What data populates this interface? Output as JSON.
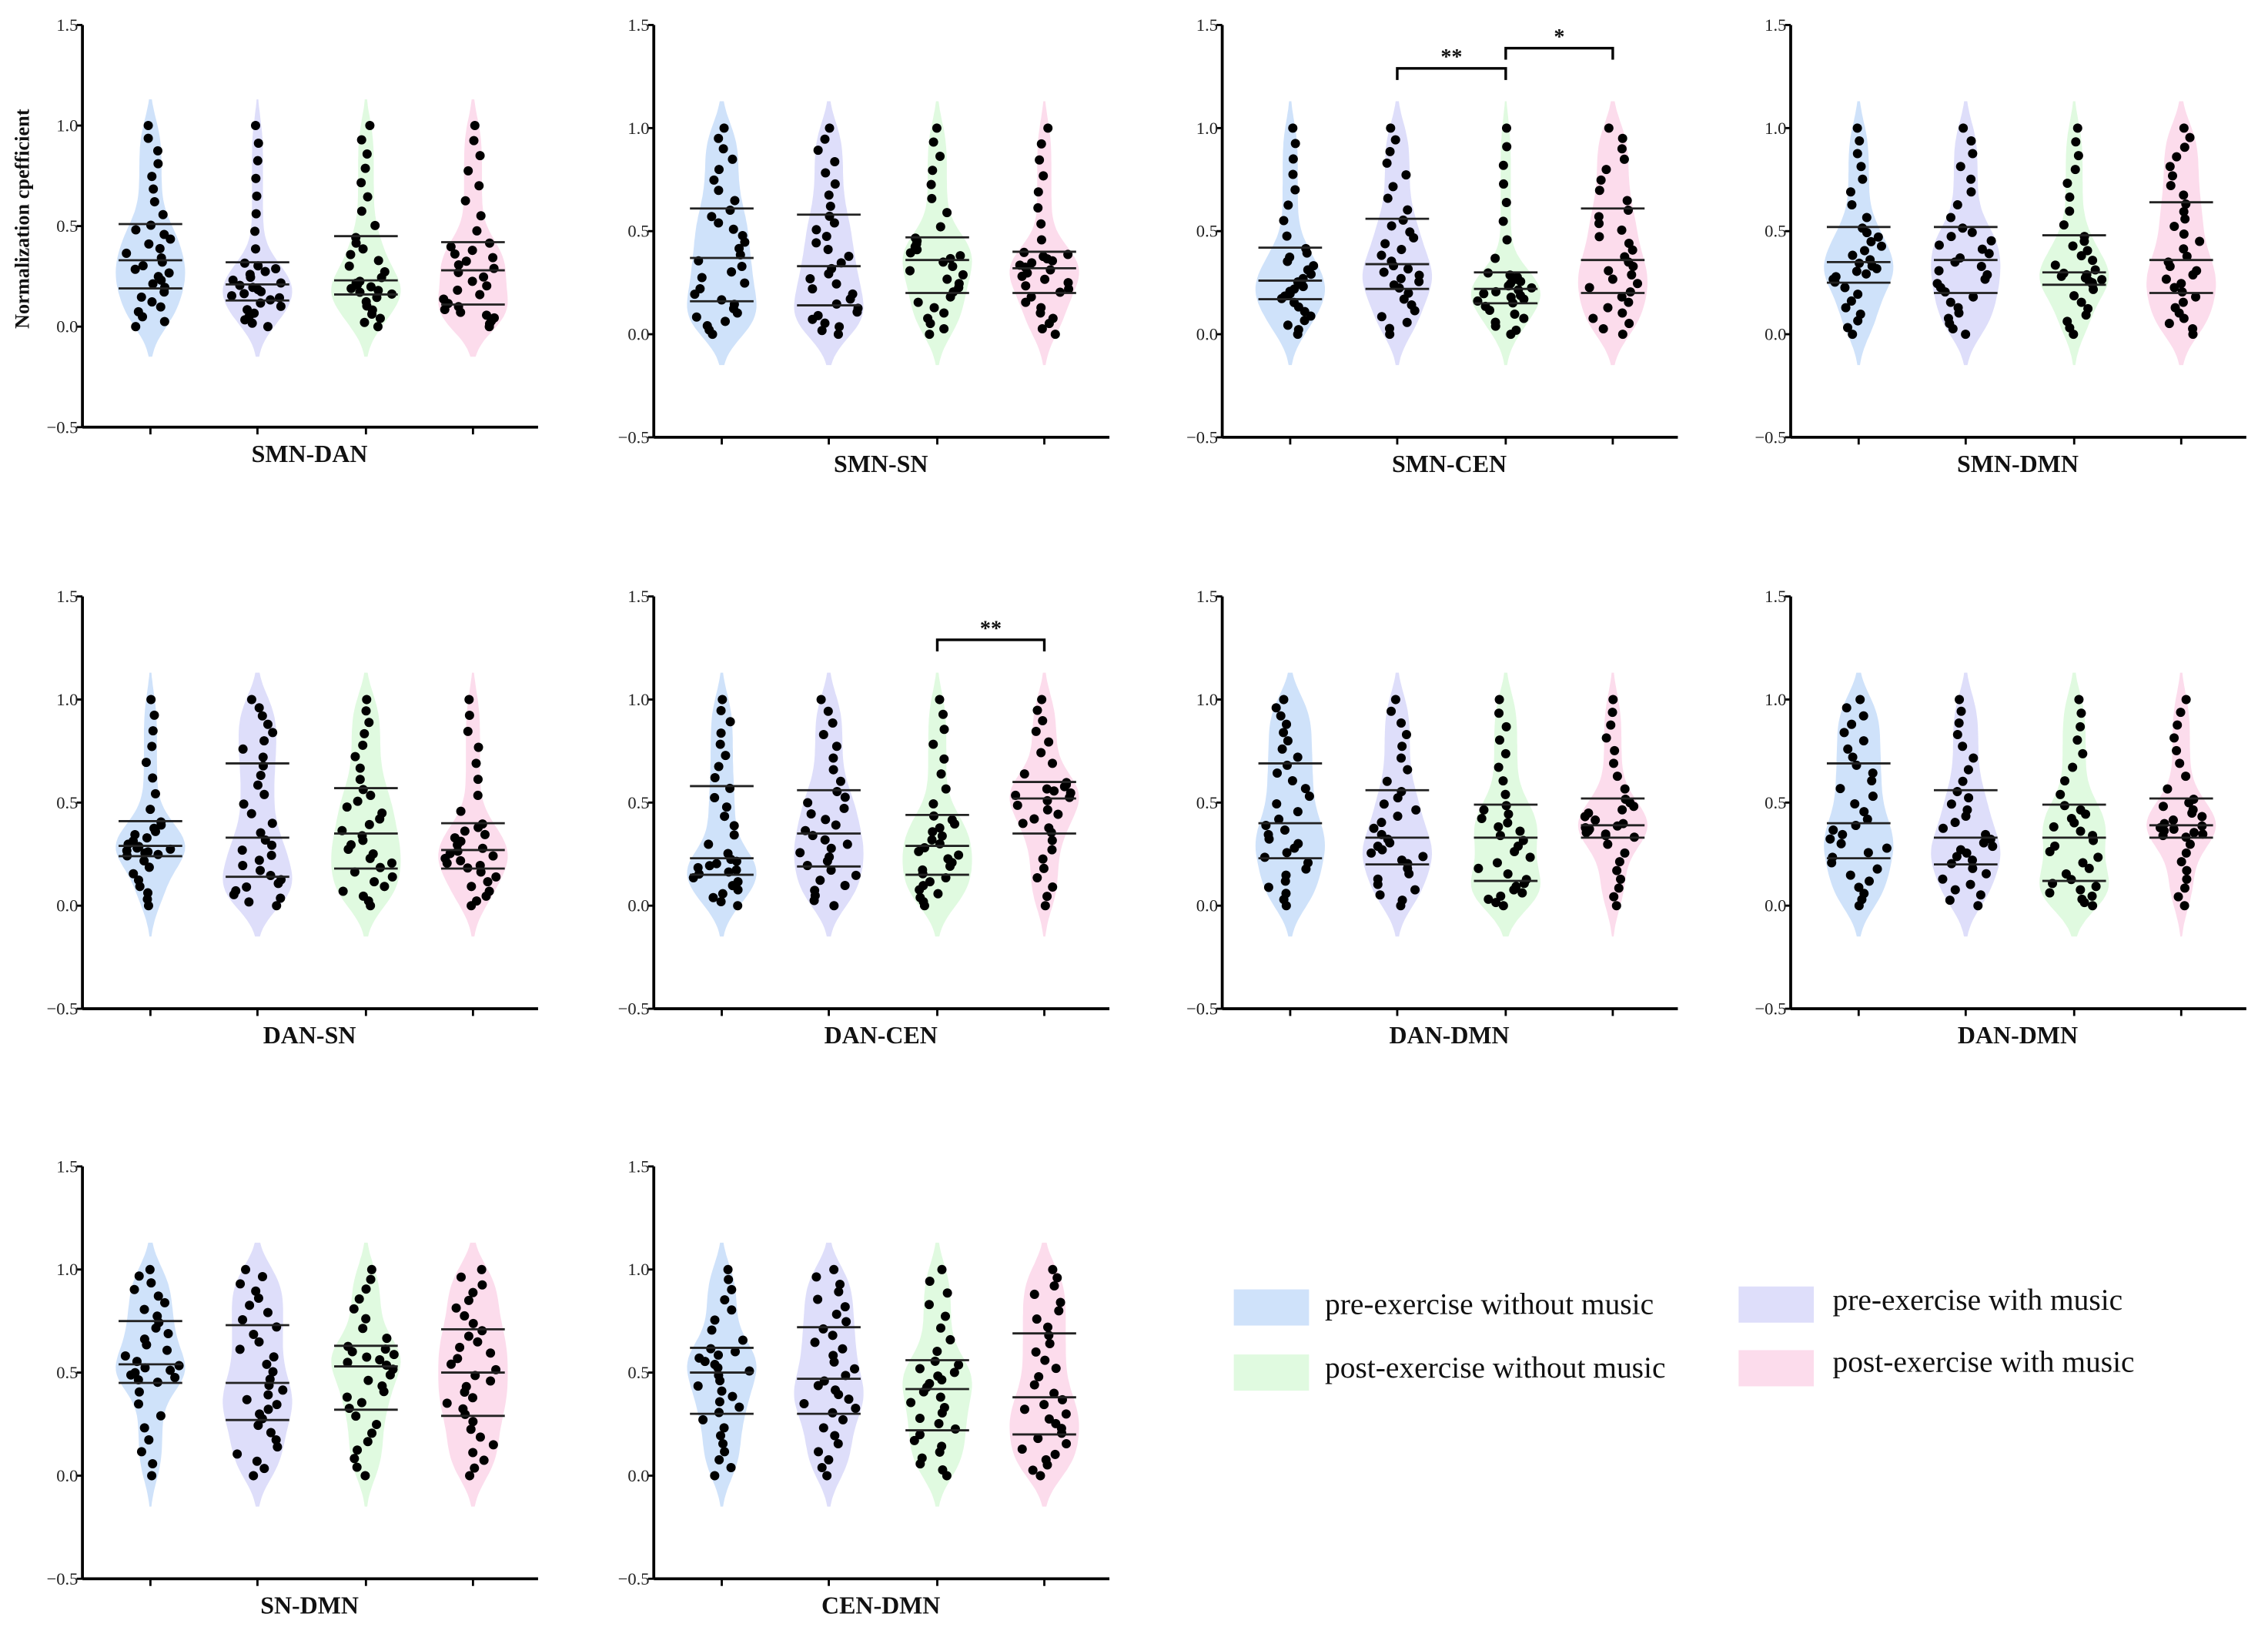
{
  "chart_data": {
    "type": "violin",
    "ylabel": "Normalization cpefficient",
    "ylim": [
      -0.5,
      1.5
    ],
    "yticks": [
      1.5,
      1.0,
      0.5,
      0.0,
      -0.5
    ],
    "ytick_labels": [
      "1.5",
      "1.0",
      "0.5",
      "0.0",
      "−0.5"
    ],
    "n_per_group": 32,
    "groups": [
      {
        "name": "pre-exercise without music",
        "color": "#cfe2fa"
      },
      {
        "name": "pre-exercise with music",
        "color": "#dedefa"
      },
      {
        "name": "post-exercise without music",
        "color": "#e0fae0"
      },
      {
        "name": "post-exercise with music",
        "color": "#fcdcec"
      }
    ],
    "legend_position": "bottom-right",
    "panels": [
      {
        "title": "SMN-DAN",
        "show_ylabel": true,
        "stats": [
          [
            0.19,
            0.33,
            0.51
          ],
          [
            0.13,
            0.21,
            0.32
          ],
          [
            0.16,
            0.23,
            0.45
          ],
          [
            0.11,
            0.28,
            0.42
          ]
        ],
        "significance": []
      },
      {
        "title": "SMN-SN",
        "stats": [
          [
            0.16,
            0.37,
            0.61
          ],
          [
            0.14,
            0.33,
            0.58
          ],
          [
            0.2,
            0.36,
            0.47
          ],
          [
            0.2,
            0.32,
            0.4
          ]
        ],
        "significance": []
      },
      {
        "title": "SMN-CEN",
        "stats": [
          [
            0.17,
            0.26,
            0.42
          ],
          [
            0.22,
            0.34,
            0.56
          ],
          [
            0.15,
            0.22,
            0.3
          ],
          [
            0.2,
            0.36,
            0.61
          ]
        ],
        "significance": [
          {
            "from": 2,
            "to": 3,
            "label": "**",
            "level": 1
          },
          {
            "from": 3,
            "to": 4,
            "label": "*",
            "level": 2
          }
        ]
      },
      {
        "title": "SMN-DMN",
        "stats": [
          [
            0.25,
            0.35,
            0.52
          ],
          [
            0.2,
            0.36,
            0.52
          ],
          [
            0.24,
            0.3,
            0.48
          ],
          [
            0.2,
            0.36,
            0.64
          ]
        ],
        "significance": []
      },
      {
        "title": "DAN-SN",
        "stats": [
          [
            0.24,
            0.29,
            0.41
          ],
          [
            0.14,
            0.33,
            0.69
          ],
          [
            0.18,
            0.35,
            0.57
          ],
          [
            0.18,
            0.27,
            0.4
          ]
        ],
        "significance": []
      },
      {
        "title": "DAN-CEN",
        "stats": [
          [
            0.15,
            0.23,
            0.58
          ],
          [
            0.19,
            0.35,
            0.56
          ],
          [
            0.15,
            0.29,
            0.44
          ],
          [
            0.35,
            0.52,
            0.6
          ]
        ],
        "significance": [
          {
            "from": 3,
            "to": 4,
            "label": "**",
            "level": 1
          }
        ]
      },
      {
        "title": "DAN-DMN",
        "stats": [
          [
            0.23,
            0.4,
            0.69
          ],
          [
            0.2,
            0.33,
            0.56
          ],
          [
            0.12,
            0.33,
            0.49
          ],
          [
            0.33,
            0.39,
            0.52
          ]
        ],
        "significance": []
      },
      {
        "title": "DAN-DMN",
        "stats": [
          [
            0.23,
            0.4,
            0.69
          ],
          [
            0.2,
            0.33,
            0.56
          ],
          [
            0.12,
            0.33,
            0.49
          ],
          [
            0.33,
            0.39,
            0.52
          ]
        ],
        "significance": []
      },
      {
        "title": "SN-DMN",
        "stats": [
          [
            0.45,
            0.54,
            0.75
          ],
          [
            0.27,
            0.45,
            0.73
          ],
          [
            0.32,
            0.53,
            0.63
          ],
          [
            0.29,
            0.5,
            0.71
          ]
        ],
        "significance": []
      },
      {
        "title": "CEN-DMN",
        "stats": [
          [
            0.3,
            0.5,
            0.62
          ],
          [
            0.3,
            0.47,
            0.72
          ],
          [
            0.22,
            0.42,
            0.56
          ],
          [
            0.2,
            0.38,
            0.69
          ]
        ],
        "significance": []
      }
    ]
  }
}
